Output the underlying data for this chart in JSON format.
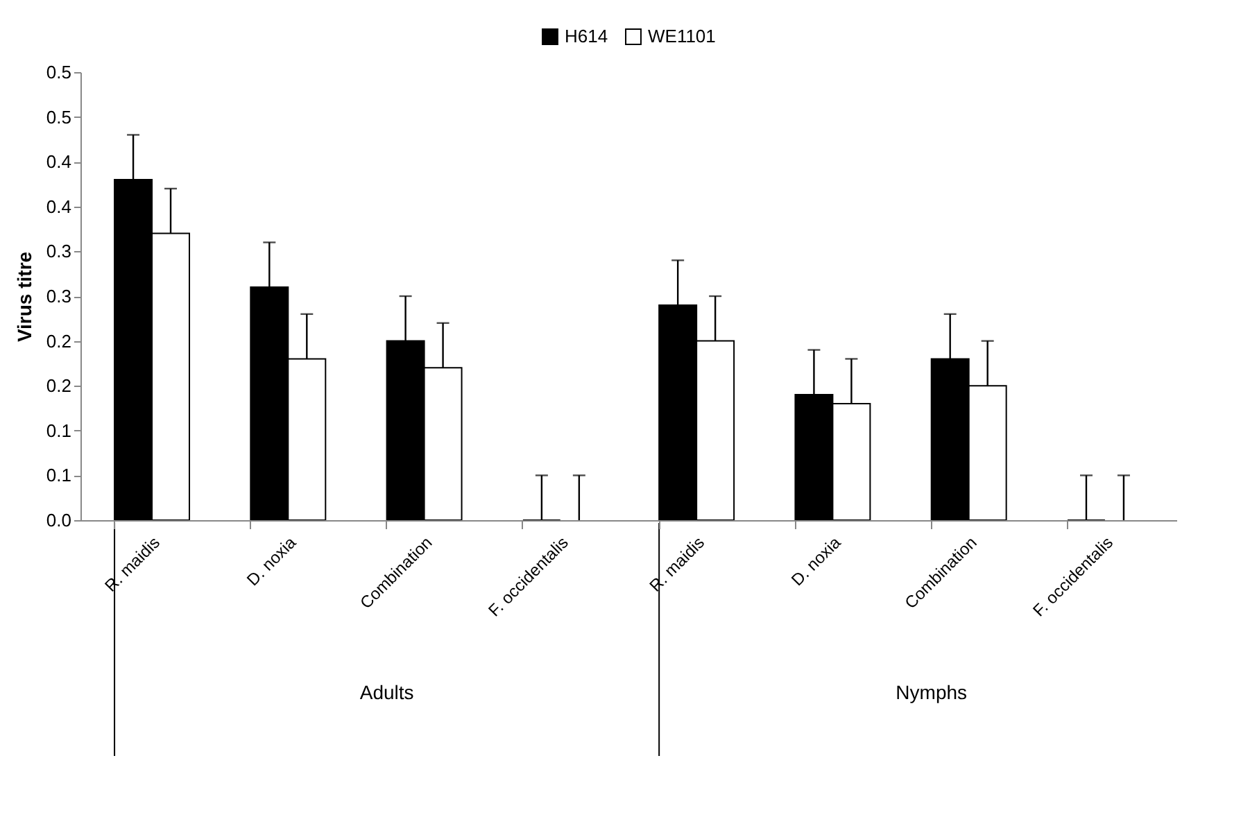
{
  "chart_data": {
    "type": "bar",
    "ylabel": "Virus titre",
    "categories": [
      "R. maidis",
      "D. noxia",
      "Combination",
      "F. occidentalis",
      "R. maidis",
      "D. noxia",
      "Combination",
      "F. occidentalis"
    ],
    "annotations": [
      "Adults",
      "Nymphs"
    ],
    "series": [
      {
        "name": "H614",
        "color": "#000000",
        "values": [
          0.38,
          0.26,
          0.2,
          0,
          0.24,
          0.14,
          0.18,
          0
        ],
        "errors": [
          [
            0.38,
            0.43
          ],
          [
            0.26,
            0.31
          ],
          [
            0.2,
            0.25
          ],
          [
            0,
            0.05
          ],
          [
            0.24,
            0.29
          ],
          [
            0.14,
            0.19
          ],
          [
            0.18,
            0.23
          ],
          [
            0,
            0.05
          ]
        ]
      },
      {
        "name": "WE1101",
        "color": "#ffffff",
        "values": [
          0.32,
          0.18,
          0.17,
          0,
          0.2,
          0.13,
          0.15,
          0
        ],
        "errors": [
          [
            0.32,
            0.37
          ],
          [
            0.18,
            0.23
          ],
          [
            0.17,
            0.22
          ],
          [
            0,
            0.05
          ],
          [
            0.2,
            0.25
          ],
          [
            0.13,
            0.18
          ],
          [
            0.15,
            0.2
          ],
          [
            0,
            0.05
          ]
        ]
      }
    ],
    "ylim": [
      0,
      0.5
    ],
    "yticks": [
      {
        "value": 0,
        "label": "0.0"
      },
      {
        "value": 0.05,
        "label": "0.1"
      },
      {
        "value": 0.1,
        "label": "0.1"
      },
      {
        "value": 0.15,
        "label": "0.2"
      },
      {
        "value": 0.2,
        "label": "0.2"
      },
      {
        "value": 0.25,
        "label": "0.3"
      },
      {
        "value": 0.3,
        "label": "0.3"
      },
      {
        "value": 0.35,
        "label": "0.4"
      },
      {
        "value": 0.4,
        "label": "0.4"
      },
      {
        "value": 0.45,
        "label": "0.5"
      },
      {
        "value": 0.5,
        "label": "0.5"
      }
    ],
    "legend": "top",
    "grid": false
  }
}
